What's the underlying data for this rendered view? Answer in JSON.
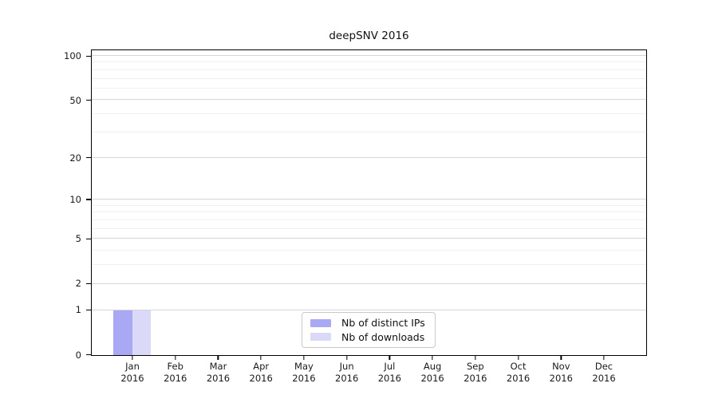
{
  "figure": {
    "background": "#ffffff"
  },
  "chart_data": {
    "type": "bar",
    "title": "deepSNV 2016",
    "categories": [
      "Jan",
      "Feb",
      "Mar",
      "Apr",
      "May",
      "Jun",
      "Jul",
      "Aug",
      "Sep",
      "Oct",
      "Nov",
      "Dec"
    ],
    "category_year": "2016",
    "series": [
      {
        "name": "Nb of distinct IPs",
        "color": "#a8a8f5",
        "values": [
          1,
          0,
          0,
          0,
          0,
          0,
          0,
          0,
          0,
          0,
          0,
          0
        ]
      },
      {
        "name": "Nb of downloads",
        "color": "#dadaf8",
        "values": [
          1,
          0,
          0,
          0,
          0,
          0,
          0,
          0,
          0,
          0,
          0,
          0
        ]
      }
    ],
    "xlabel": "",
    "ylabel": "",
    "y_axis": {
      "scale": "log10(value+1)",
      "tick_values": [
        0,
        1,
        2,
        5,
        10,
        20,
        50,
        100
      ],
      "minor_gridline_values": [
        3,
        4,
        6,
        7,
        8,
        9,
        30,
        40,
        60,
        70,
        80,
        90
      ],
      "max": 109
    },
    "grid": "on",
    "legend": {
      "position": "bottom-center",
      "entries": [
        "Nb of distinct IPs",
        "Nb of downloads"
      ]
    },
    "colors": {
      "major_gridline": "#d6d6d6",
      "minor_gridline": "#f0f0f0",
      "axis": "#000000",
      "text": "#1a1a1a",
      "legend_border": "#c9c9c9"
    }
  }
}
